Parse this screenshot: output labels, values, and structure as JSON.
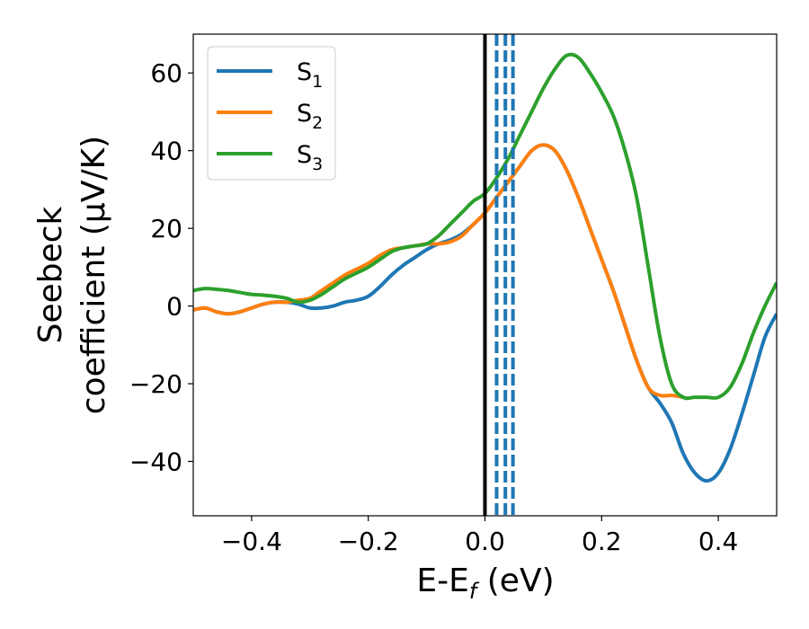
{
  "chart_data": {
    "type": "line",
    "title": "",
    "xlabel_main": "E-E",
    "xlabel_sub": "f",
    "xlabel_unit": " (eV)",
    "ylabel_line1": "Seebeck",
    "ylabel_line2": "coefficient  (μV/K)",
    "xlim": [
      -0.5,
      0.5
    ],
    "ylim": [
      -54,
      70
    ],
    "xticks": [
      -0.4,
      -0.2,
      0.0,
      0.2,
      0.4
    ],
    "xtick_labels": [
      "−0.4",
      "−0.2",
      "0.0",
      "0.2",
      "0.4"
    ],
    "yticks": [
      -40,
      -20,
      0,
      20,
      40,
      60
    ],
    "ytick_labels": [
      "−40",
      "−20",
      "0",
      "20",
      "40",
      "60"
    ],
    "grid": false,
    "legend_position": "top-left",
    "vertical_line": {
      "x": 0.0,
      "color": "#000000",
      "style": "solid"
    },
    "dashed_lines": {
      "x": [
        0.02,
        0.035,
        0.048
      ],
      "color": "#1f77b4",
      "style": "dashed"
    },
    "series": [
      {
        "label_main": "S",
        "label_sub": "1",
        "color": "#1f77b4",
        "x": [
          -0.5,
          -0.48,
          -0.46,
          -0.44,
          -0.42,
          -0.4,
          -0.38,
          -0.36,
          -0.34,
          -0.32,
          -0.3,
          -0.28,
          -0.26,
          -0.24,
          -0.22,
          -0.2,
          -0.18,
          -0.16,
          -0.14,
          -0.12,
          -0.1,
          -0.08,
          -0.06,
          -0.04,
          -0.02,
          0.0,
          0.02,
          0.04,
          0.06,
          0.08,
          0.1,
          0.12,
          0.14,
          0.16,
          0.18,
          0.2,
          0.22,
          0.24,
          0.26,
          0.28,
          0.3,
          0.32,
          0.34,
          0.36,
          0.38,
          0.4,
          0.42,
          0.44,
          0.46,
          0.48,
          0.5
        ],
        "y": [
          -1,
          -0.5,
          -1.5,
          -2,
          -1.5,
          -0.5,
          0.5,
          1,
          1,
          0.5,
          -0.5,
          -0.5,
          0,
          1,
          1.5,
          2.5,
          5,
          8,
          10.5,
          12.5,
          14.5,
          16,
          17,
          18.5,
          21,
          24,
          28,
          32,
          36,
          40,
          41.5,
          40,
          35,
          28,
          20,
          12,
          4,
          -5,
          -14,
          -21,
          -25,
          -30,
          -38,
          -43,
          -45,
          -43,
          -37,
          -28,
          -18,
          -8,
          -2
        ]
      },
      {
        "label_main": "S",
        "label_sub": "2",
        "color": "#ff7f0e",
        "x": [
          -0.5,
          -0.48,
          -0.46,
          -0.44,
          -0.42,
          -0.4,
          -0.38,
          -0.36,
          -0.34,
          -0.32,
          -0.3,
          -0.28,
          -0.26,
          -0.24,
          -0.22,
          -0.2,
          -0.18,
          -0.16,
          -0.14,
          -0.12,
          -0.1,
          -0.08,
          -0.06,
          -0.04,
          -0.02,
          0.0,
          0.02,
          0.04,
          0.06,
          0.08,
          0.1,
          0.12,
          0.14,
          0.16,
          0.18,
          0.2,
          0.22,
          0.24,
          0.26,
          0.28,
          0.3,
          0.32,
          0.34
        ],
        "y": [
          -1,
          -0.5,
          -1.5,
          -2,
          -1.5,
          -0.5,
          0.5,
          1,
          1,
          1.5,
          2,
          4,
          6,
          8,
          9.5,
          11,
          13,
          14.5,
          15,
          15.5,
          16,
          16,
          16.5,
          18,
          21,
          24,
          28,
          32,
          36,
          40,
          41.5,
          40,
          35,
          28,
          20,
          12,
          4,
          -5,
          -14,
          -21,
          -23,
          -23,
          -23.5
        ]
      },
      {
        "label_main": "S",
        "label_sub": "3",
        "color": "#2ca02c",
        "x": [
          -0.5,
          -0.48,
          -0.46,
          -0.44,
          -0.42,
          -0.4,
          -0.38,
          -0.36,
          -0.34,
          -0.32,
          -0.3,
          -0.28,
          -0.26,
          -0.24,
          -0.22,
          -0.2,
          -0.18,
          -0.16,
          -0.14,
          -0.12,
          -0.1,
          -0.08,
          -0.06,
          -0.04,
          -0.02,
          0.0,
          0.02,
          0.04,
          0.06,
          0.08,
          0.1,
          0.12,
          0.14,
          0.16,
          0.18,
          0.2,
          0.22,
          0.24,
          0.26,
          0.28,
          0.3,
          0.32,
          0.34,
          0.36,
          0.38,
          0.4,
          0.42,
          0.44,
          0.46,
          0.48,
          0.5
        ],
        "y": [
          4,
          4.5,
          4.3,
          4,
          3.5,
          3,
          2.8,
          2.5,
          2,
          1,
          1.5,
          3,
          5,
          7,
          8.5,
          10,
          12,
          14,
          15,
          15.5,
          16,
          18,
          21,
          24,
          27,
          29,
          33,
          38,
          44,
          50,
          56,
          61,
          64.5,
          64,
          60,
          55,
          49,
          40,
          28,
          10,
          -8,
          -20,
          -23.5,
          -23.5,
          -23.5,
          -23.5,
          -21,
          -15,
          -7,
          0,
          6
        ]
      }
    ]
  }
}
